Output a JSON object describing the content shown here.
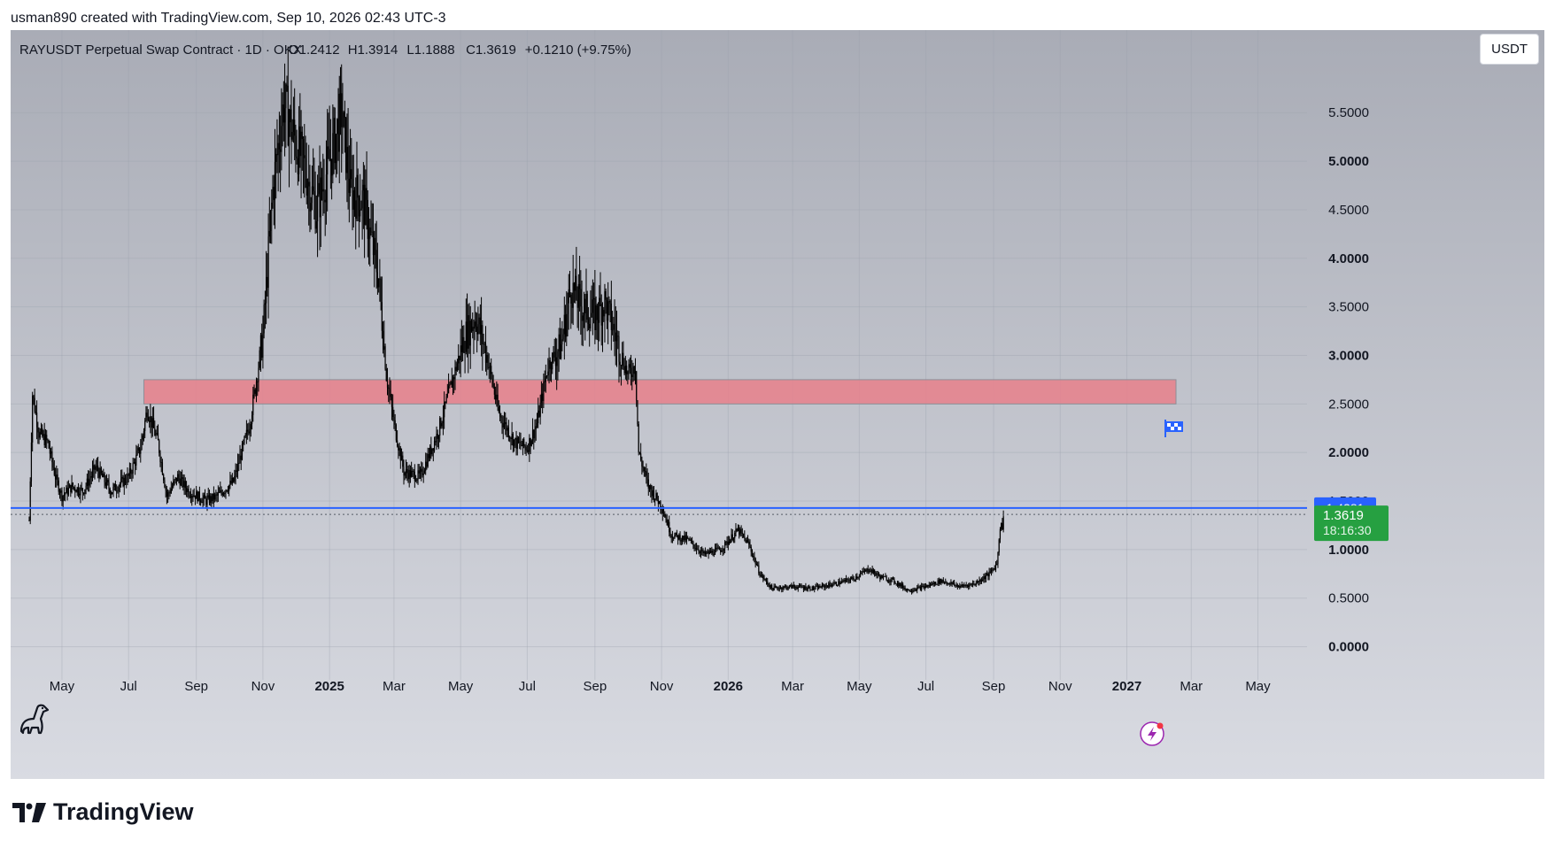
{
  "header": {
    "credit": "usman890 created with TradingView.com, Sep 10, 2026 02:43 UTC-3"
  },
  "brand": {
    "name": "TradingView"
  },
  "currency_button": {
    "label": "USDT"
  },
  "colors": {
    "background_top": "#a9acb6",
    "background_bottom": "#d9dbe2",
    "candles": "#000000",
    "zone_fill": "#e8808b",
    "support_line": "#2962ff",
    "last_price_tag": "#26a041",
    "level_tag": "#2962ff"
  },
  "icons": {
    "flag": "checkered-flag-icon",
    "logo_mascot": "dinosaur-icon",
    "bolt": "lightning-bolt-icon"
  },
  "chart_data": {
    "type": "candlestick",
    "title": "RAYUSDT Perpetual Swap Contract · 1D · OKX",
    "ohlc_label": {
      "open": "O1.2412",
      "high": "H1.3914",
      "low": "L1.1888",
      "close": "C1.3619",
      "change": "+0.1210 (+9.75%)"
    },
    "x_ticks": [
      "May",
      "Jul",
      "Sep",
      "Nov",
      "2025",
      "Mar",
      "May",
      "Jul",
      "Sep",
      "Nov",
      "2026",
      "Mar",
      "May",
      "Jul",
      "Sep",
      "Nov",
      "2027",
      "Mar",
      "May"
    ],
    "x_ticks_bold": [
      "2025",
      "2026",
      "2027"
    ],
    "y_ticks": [
      "0.0000",
      "0.5000",
      "1.0000",
      "1.5000",
      "2.0000",
      "2.5000",
      "3.0000",
      "3.5000",
      "4.0000",
      "4.5000",
      "5.0000",
      "5.5000"
    ],
    "ylim": [
      -0.25,
      6.35
    ],
    "xlim": [
      "2024-03-15",
      "2027-06-15"
    ],
    "grid": true,
    "zones": [
      {
        "from": "2024-07-15",
        "to": "2027-02-15",
        "low": 2.5,
        "high": 2.75
      }
    ],
    "horizontal_lines": [
      {
        "value": 1.4281,
        "label": "1.4281"
      }
    ],
    "last_price": {
      "value": 1.3619,
      "label": "1.3619",
      "countdown": "18:16:30"
    },
    "series": [
      {
        "approximate_closes": [
          [
            "2024-04-01",
            1.3
          ],
          [
            "2024-04-04",
            2.6
          ],
          [
            "2024-04-10",
            2.2
          ],
          [
            "2024-04-18",
            2.1
          ],
          [
            "2024-04-25",
            1.75
          ],
          [
            "2024-05-01",
            1.55
          ],
          [
            "2024-05-10",
            1.65
          ],
          [
            "2024-05-20",
            1.6
          ],
          [
            "2024-06-01",
            1.85
          ],
          [
            "2024-06-15",
            1.6
          ],
          [
            "2024-07-01",
            1.75
          ],
          [
            "2024-07-12",
            2.05
          ],
          [
            "2024-07-18",
            2.45
          ],
          [
            "2024-07-28",
            2.1
          ],
          [
            "2024-08-05",
            1.55
          ],
          [
            "2024-08-15",
            1.75
          ],
          [
            "2024-08-25",
            1.6
          ],
          [
            "2024-09-10",
            1.5
          ],
          [
            "2024-09-20",
            1.55
          ],
          [
            "2024-10-05",
            1.7
          ],
          [
            "2024-10-20",
            2.3
          ],
          [
            "2024-11-01",
            3.2
          ],
          [
            "2024-11-10",
            4.7
          ],
          [
            "2024-11-20",
            5.6
          ],
          [
            "2024-12-01",
            5.2
          ],
          [
            "2024-12-10",
            4.9
          ],
          [
            "2024-12-20",
            4.5
          ],
          [
            "2025-01-01",
            5.0
          ],
          [
            "2025-01-12",
            5.5
          ],
          [
            "2025-01-20",
            4.7
          ],
          [
            "2025-02-01",
            4.6
          ],
          [
            "2025-02-15",
            3.8
          ],
          [
            "2025-02-22",
            2.8
          ],
          [
            "2025-03-01",
            2.3
          ],
          [
            "2025-03-10",
            1.8
          ],
          [
            "2025-03-25",
            1.75
          ],
          [
            "2025-04-10",
            2.2
          ],
          [
            "2025-04-25",
            2.8
          ],
          [
            "2025-05-05",
            3.2
          ],
          [
            "2025-05-15",
            3.4
          ],
          [
            "2025-05-25",
            3.0
          ],
          [
            "2025-06-05",
            2.4
          ],
          [
            "2025-06-20",
            2.1
          ],
          [
            "2025-07-01",
            2.05
          ],
          [
            "2025-07-10",
            2.3
          ],
          [
            "2025-07-20",
            2.9
          ],
          [
            "2025-08-01",
            3.1
          ],
          [
            "2025-08-10",
            3.7
          ],
          [
            "2025-08-20",
            3.5
          ],
          [
            "2025-09-01",
            3.4
          ],
          [
            "2025-09-10",
            3.55
          ],
          [
            "2025-09-20",
            3.2
          ],
          [
            "2025-10-01",
            2.8
          ],
          [
            "2025-10-08",
            2.9
          ],
          [
            "2025-10-11",
            2.0
          ],
          [
            "2025-10-20",
            1.65
          ],
          [
            "2025-11-01",
            1.45
          ],
          [
            "2025-11-10",
            1.15
          ],
          [
            "2025-11-25",
            1.1
          ],
          [
            "2025-12-10",
            0.95
          ],
          [
            "2025-12-25",
            1.0
          ],
          [
            "2026-01-10",
            1.2
          ],
          [
            "2026-01-20",
            1.05
          ],
          [
            "2026-01-30",
            0.75
          ],
          [
            "2026-02-10",
            0.6
          ],
          [
            "2026-03-01",
            0.62
          ],
          [
            "2026-03-20",
            0.6
          ],
          [
            "2026-04-10",
            0.65
          ],
          [
            "2026-04-25",
            0.7
          ],
          [
            "2026-05-10",
            0.8
          ],
          [
            "2026-05-20",
            0.72
          ],
          [
            "2026-06-01",
            0.68
          ],
          [
            "2026-06-15",
            0.58
          ],
          [
            "2026-07-01",
            0.62
          ],
          [
            "2026-07-15",
            0.68
          ],
          [
            "2026-08-01",
            0.62
          ],
          [
            "2026-08-15",
            0.65
          ],
          [
            "2026-08-28",
            0.75
          ],
          [
            "2026-09-04",
            0.85
          ],
          [
            "2026-09-07",
            1.25
          ],
          [
            "2026-09-09",
            1.2412
          ],
          [
            "2026-09-10",
            1.3619
          ]
        ]
      }
    ]
  }
}
